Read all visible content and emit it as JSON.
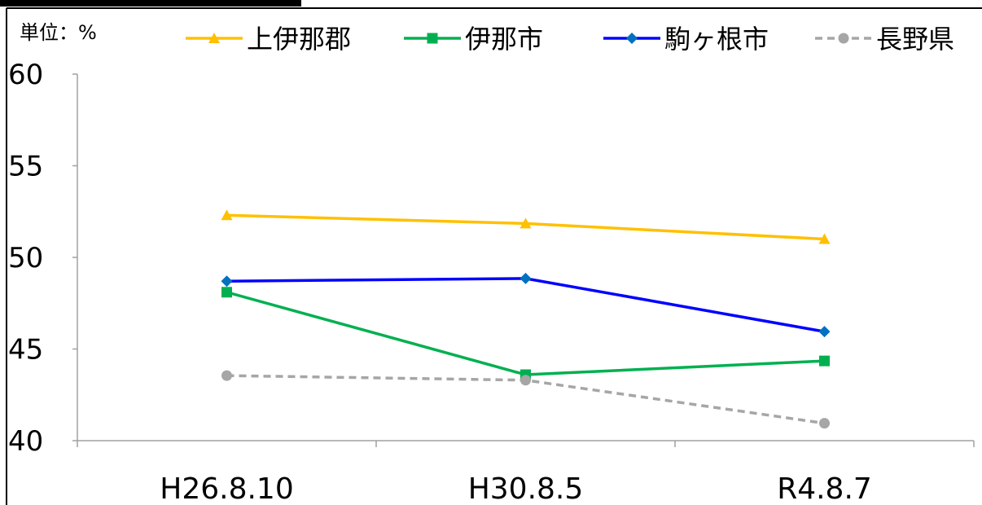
{
  "chart_data": {
    "type": "line",
    "unit_label": "単位：%",
    "categories": [
      "H26.8.10",
      "H30.8.5",
      "R4.8.7"
    ],
    "ylim": [
      40,
      60
    ],
    "yticks": [
      "60",
      "55",
      "50",
      "45",
      "40"
    ],
    "ytick_values": [
      60,
      55,
      50,
      45,
      40
    ],
    "legend_position": "top",
    "series": [
      {
        "name": "上伊那郡",
        "values": [
          52.3,
          51.85,
          51.0
        ],
        "color": "#FFC000",
        "marker": "triangle",
        "dash": false
      },
      {
        "name": "伊那市",
        "values": [
          48.1,
          43.6,
          44.35
        ],
        "color": "#00B050",
        "marker": "square",
        "dash": false
      },
      {
        "name": "駒ヶ根市",
        "values": [
          48.7,
          48.85,
          45.95
        ],
        "color": "#0000FF",
        "marker": "diamond",
        "dash": false
      },
      {
        "name": "長野県",
        "values": [
          43.55,
          43.3,
          40.95
        ],
        "color": "#A6A6A6",
        "marker": "circle",
        "dash": true
      }
    ]
  }
}
